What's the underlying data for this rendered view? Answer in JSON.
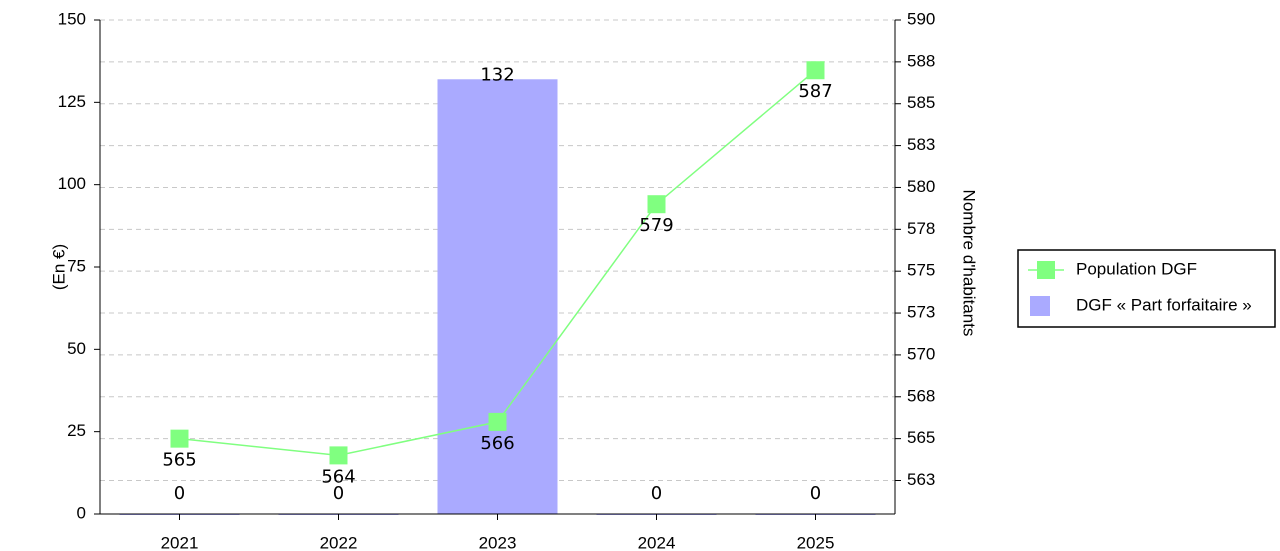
{
  "chart_data": {
    "type": "bar_line",
    "categories": [
      "2021",
      "2022",
      "2023",
      "2024",
      "2025"
    ],
    "ylabel": "(En €)",
    "y2label": "Nombre d'habitants",
    "ylim": [
      0,
      150
    ],
    "yticks": [
      0,
      25,
      50,
      75,
      100,
      125,
      150
    ],
    "y2lim": [
      560.5,
      590
    ],
    "y2ticks": [
      {
        "value": 562.5,
        "label": "563"
      },
      565,
      {
        "value": 567.5,
        "label": "568"
      },
      570,
      {
        "value": 572.5,
        "label": "573"
      },
      575,
      {
        "value": 577.5,
        "label": "578"
      },
      580,
      {
        "value": 582.5,
        "label": "583"
      },
      585,
      {
        "value": 587.5,
        "label": "588"
      },
      590
    ],
    "grid": true,
    "series": [
      {
        "name": "Population DGF",
        "type": "line",
        "axis": "y2",
        "color": "#80ff80",
        "values": [
          565,
          564,
          566,
          579,
          587
        ]
      },
      {
        "name": "DGF « Part forfaitaire »",
        "type": "bar",
        "color": "#aaaaff",
        "values": [
          0,
          0,
          132,
          0,
          0
        ]
      }
    ]
  }
}
